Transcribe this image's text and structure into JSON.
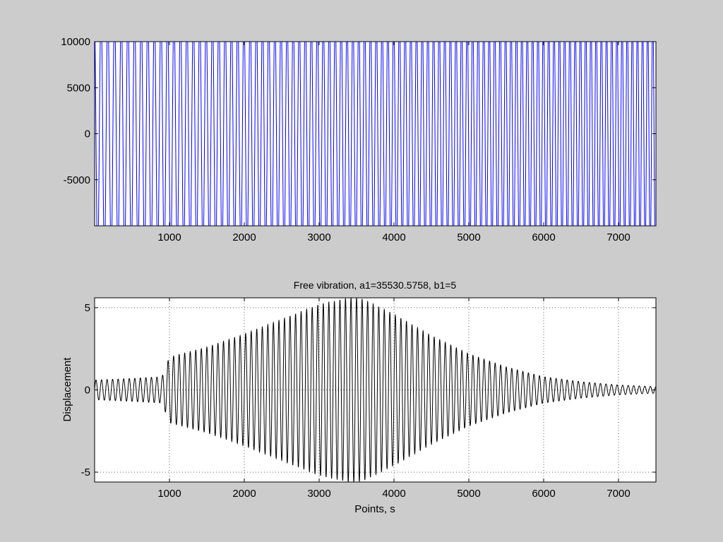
{
  "window": {
    "background": "#cccccc"
  },
  "chart_data": [
    {
      "type": "line",
      "title": "",
      "xlabel": "",
      "ylabel": "",
      "xlim": [
        0,
        7500
      ],
      "ylim": [
        -10000,
        10000
      ],
      "xticks": [
        1000,
        2000,
        3000,
        4000,
        5000,
        6000,
        7000
      ],
      "yticks": [
        -5000,
        0,
        5000,
        10000
      ],
      "grid": false,
      "line_color": "#0000ff",
      "series": [
        {
          "x": [
            0,
            1000,
            2000,
            3000,
            4000,
            5000,
            6000,
            7000,
            7500
          ],
          "y_min": [
            -10000,
            -10000,
            -10000,
            -10000,
            -10000,
            -10000,
            -10000,
            -10000,
            -10000
          ],
          "y_max": [
            10000,
            10000,
            10000,
            10000,
            10000,
            10000,
            10000,
            10000,
            10000
          ],
          "cycles_per_1000": [
            11,
            11.5,
            12,
            12.5,
            13,
            13.5,
            14,
            14.5,
            14.8
          ]
        }
      ]
    },
    {
      "type": "line",
      "title": "Free vibration, a1=35530.5758,  b1=5",
      "xlabel": "Points,  s",
      "ylabel": "Displacement",
      "xlim": [
        0,
        7500
      ],
      "ylim": [
        -5.6,
        5.6
      ],
      "xticks": [
        1000,
        2000,
        3000,
        4000,
        5000,
        6000,
        7000
      ],
      "yticks": [
        -5,
        0,
        5
      ],
      "grid": true,
      "line_color": "#000000",
      "series": [
        {
          "envelope_x": [
            0,
            500,
            900,
            1000,
            1500,
            2000,
            2500,
            3000,
            3400,
            3500,
            3600,
            4000,
            4500,
            5000,
            5500,
            6000,
            6500,
            7000,
            7500
          ],
          "envelope_amplitude": [
            0.6,
            0.7,
            0.8,
            2.0,
            2.6,
            3.4,
            4.3,
            5.2,
            5.6,
            5.6,
            5.5,
            4.6,
            3.3,
            2.2,
            1.4,
            0.8,
            0.5,
            0.3,
            0.2
          ],
          "cycles_per_1000": [
            13.5,
            13.5,
            13.5,
            13.5,
            13.5,
            13.5,
            13.5,
            13.5,
            13.5,
            13.5,
            13.5,
            13.5,
            13.5,
            13.5,
            13.5,
            13.5,
            13.5,
            13.5,
            13.5
          ]
        }
      ]
    }
  ]
}
